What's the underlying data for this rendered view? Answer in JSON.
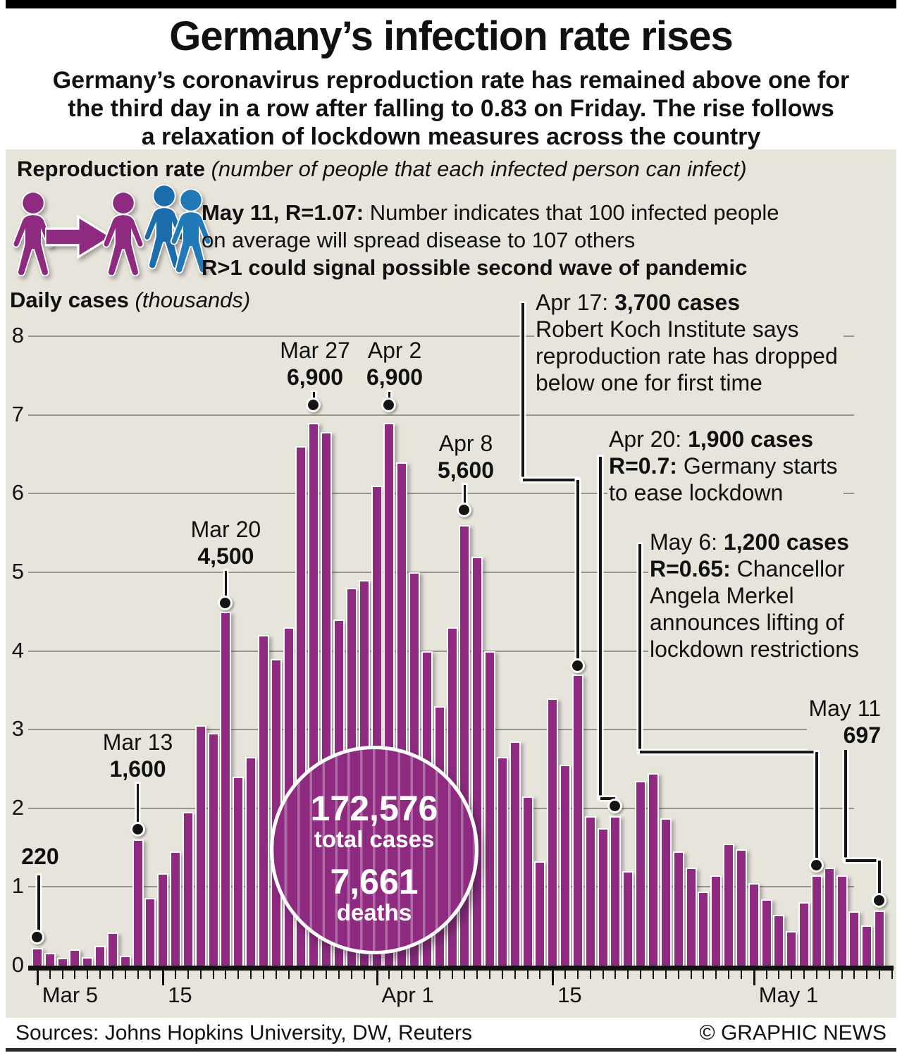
{
  "colors": {
    "purple": "#8e2b81",
    "blue": "#2279b8",
    "blue_dark": "#1c6dad",
    "beige": "#e7e4db",
    "grid": "#98948a"
  },
  "header": {
    "title": "Germany’s infection rate rises",
    "subtitle_line1": "Germany’s coronavirus reproduction rate has remained above one for",
    "subtitle_line2": "the third day in a row after falling to 0.83 on Friday. The rise follows",
    "subtitle_line3": "a relaxation of lockdown measures across the country"
  },
  "repro": {
    "heading": "Reproduction rate",
    "heading_note": " (number of people that each infected person can infect)",
    "line1_bold": "May 11, R=1.07:",
    "line1_rest": " Number indicates that 100 infected people",
    "line2": "on average will spread disease to 107 others",
    "line3_bold": "R>1 could signal possible second wave of pandemic",
    "icons": [
      "person-purple",
      "arrow-right",
      "person-purple",
      "person-blue-back",
      "person-blue-front"
    ]
  },
  "chart_label": {
    "bold": "Daily cases",
    "note": " (thousands)"
  },
  "totals": {
    "cases_value": "172,576",
    "cases_label": "total cases",
    "deaths_value": "7,661",
    "deaths_label": "deaths"
  },
  "chart_data": {
    "type": "bar",
    "title": "Daily cases (thousands)",
    "unit": "thousands of cases per day",
    "ylim": [
      0,
      8
    ],
    "yticks": [
      8,
      7,
      6,
      5,
      4,
      3,
      2,
      1,
      0
    ],
    "grid": true,
    "bar_color": "#8e2b81",
    "dates": [
      "Mar 5",
      "Mar 6",
      "Mar 7",
      "Mar 8",
      "Mar 9",
      "Mar 10",
      "Mar 11",
      "Mar 12",
      "Mar 13",
      "Mar 14",
      "Mar 15",
      "Mar 16",
      "Mar 17",
      "Mar 18",
      "Mar 19",
      "Mar 20",
      "Mar 21",
      "Mar 22",
      "Mar 23",
      "Mar 24",
      "Mar 25",
      "Mar 26",
      "Mar 27",
      "Mar 28",
      "Mar 29",
      "Mar 30",
      "Mar 31",
      "Apr 1",
      "Apr 2",
      "Apr 3",
      "Apr 4",
      "Apr 5",
      "Apr 6",
      "Apr 7",
      "Apr 8",
      "Apr 9",
      "Apr 10",
      "Apr 11",
      "Apr 12",
      "Apr 13",
      "Apr 14",
      "Apr 15",
      "Apr 16",
      "Apr 17",
      "Apr 18",
      "Apr 19",
      "Apr 20",
      "Apr 21",
      "Apr 22",
      "Apr 23",
      "Apr 24",
      "Apr 25",
      "Apr 26",
      "Apr 27",
      "Apr 28",
      "Apr 29",
      "Apr 30",
      "May 1",
      "May 2",
      "May 3",
      "May 4",
      "May 5",
      "May 6",
      "May 7",
      "May 8",
      "May 9",
      "May 10",
      "May 11"
    ],
    "values": [
      0.22,
      0.16,
      0.1,
      0.21,
      0.11,
      0.25,
      0.42,
      0.13,
      1.6,
      0.86,
      1.17,
      1.45,
      1.95,
      3.06,
      2.96,
      4.5,
      2.4,
      2.65,
      4.2,
      3.9,
      4.3,
      6.6,
      6.9,
      6.78,
      4.4,
      4.8,
      4.9,
      6.1,
      6.9,
      6.4,
      5.0,
      4.0,
      3.3,
      4.3,
      5.6,
      5.2,
      4.0,
      2.65,
      2.85,
      2.15,
      1.33,
      3.4,
      2.55,
      3.7,
      1.9,
      1.75,
      1.9,
      1.2,
      2.35,
      2.45,
      1.87,
      1.45,
      1.25,
      0.94,
      1.15,
      1.55,
      1.48,
      1.05,
      0.84,
      0.65,
      0.44,
      0.81,
      1.15,
      1.25,
      1.15,
      0.69,
      0.51,
      0.697
    ],
    "xtick_labels": [
      {
        "i": 0,
        "label": "Mar 5"
      },
      {
        "i": 10,
        "label": "15"
      },
      {
        "i": 27,
        "label": "Apr 1"
      },
      {
        "i": 41,
        "label": "15"
      },
      {
        "i": 57,
        "label": "May 1"
      }
    ],
    "key_points": [
      {
        "date": "Mar 5",
        "value": 220
      },
      {
        "date": "Mar 13",
        "value": 1600
      },
      {
        "date": "Mar 20",
        "value": 4500
      },
      {
        "date": "Mar 27",
        "value": 6900
      },
      {
        "date": "Apr 2",
        "value": 6900
      },
      {
        "date": "Apr 8",
        "value": 5600
      },
      {
        "date": "Apr 17",
        "value": 3700
      },
      {
        "date": "Apr 20",
        "value": 1900
      },
      {
        "date": "May 6",
        "value": 1200
      },
      {
        "date": "May 11",
        "value": 697
      }
    ]
  },
  "annotations": [
    {
      "id": "a220",
      "day": 0,
      "lines": [
        [
          {
            "t": "220",
            "b": 1
          }
        ]
      ]
    },
    {
      "id": "mar13",
      "day": 8,
      "lines": [
        [
          {
            "t": "Mar 13",
            "b": 0
          }
        ],
        [
          {
            "t": "1,600",
            "b": 1
          }
        ]
      ]
    },
    {
      "id": "mar20",
      "day": 15,
      "lines": [
        [
          {
            "t": "Mar 20",
            "b": 0
          }
        ],
        [
          {
            "t": "4,500",
            "b": 1
          }
        ]
      ]
    },
    {
      "id": "mar27",
      "day": 22,
      "lines": [
        [
          {
            "t": "Mar 27",
            "b": 0
          }
        ],
        [
          {
            "t": "6,900",
            "b": 1
          }
        ]
      ]
    },
    {
      "id": "apr2",
      "day": 28,
      "lines": [
        [
          {
            "t": "Apr 2",
            "b": 0
          }
        ],
        [
          {
            "t": "6,900",
            "b": 1
          }
        ]
      ]
    },
    {
      "id": "apr8",
      "day": 34,
      "lines": [
        [
          {
            "t": "Apr 8",
            "b": 0
          }
        ],
        [
          {
            "t": "5,600",
            "b": 1
          }
        ]
      ]
    },
    {
      "id": "apr17",
      "day": 43,
      "lines": [
        [
          {
            "t": "Apr 17: ",
            "b": 0
          },
          {
            "t": "3,700 cases",
            "b": 1
          }
        ],
        [
          {
            "t": "Robert Koch Institute says",
            "b": 0
          }
        ],
        [
          {
            "t": "reproduction rate has dropped",
            "b": 0
          }
        ],
        [
          {
            "t": "below one for first time",
            "b": 0
          }
        ]
      ]
    },
    {
      "id": "apr20",
      "day": 46,
      "lines": [
        [
          {
            "t": "Apr 20: ",
            "b": 0
          },
          {
            "t": "1,900 cases",
            "b": 1
          }
        ],
        [
          {
            "t": "R=0.7:",
            "b": 1
          },
          {
            "t": " Germany starts",
            "b": 0
          }
        ],
        [
          {
            "t": "to ease lockdown",
            "b": 0
          }
        ]
      ]
    },
    {
      "id": "may6",
      "day": 62,
      "lines": [
        [
          {
            "t": "May 6: ",
            "b": 0
          },
          {
            "t": "1,200 cases",
            "b": 1
          }
        ],
        [
          {
            "t": "R=0.65:",
            "b": 1
          },
          {
            "t": " Chancellor",
            "b": 0
          }
        ],
        [
          {
            "t": "Angela Merkel",
            "b": 0
          }
        ],
        [
          {
            "t": "announces lifting of",
            "b": 0
          }
        ],
        [
          {
            "t": "lockdown restrictions",
            "b": 0
          }
        ]
      ]
    },
    {
      "id": "may11",
      "day": 67,
      "lines": [
        [
          {
            "t": "May 11",
            "b": 0
          }
        ],
        [
          {
            "t": "697",
            "b": 1
          }
        ]
      ]
    }
  ],
  "footer": {
    "sources": "Sources: Johns Hopkins University, DW, Reuters",
    "credit": "© GRAPHIC NEWS"
  }
}
